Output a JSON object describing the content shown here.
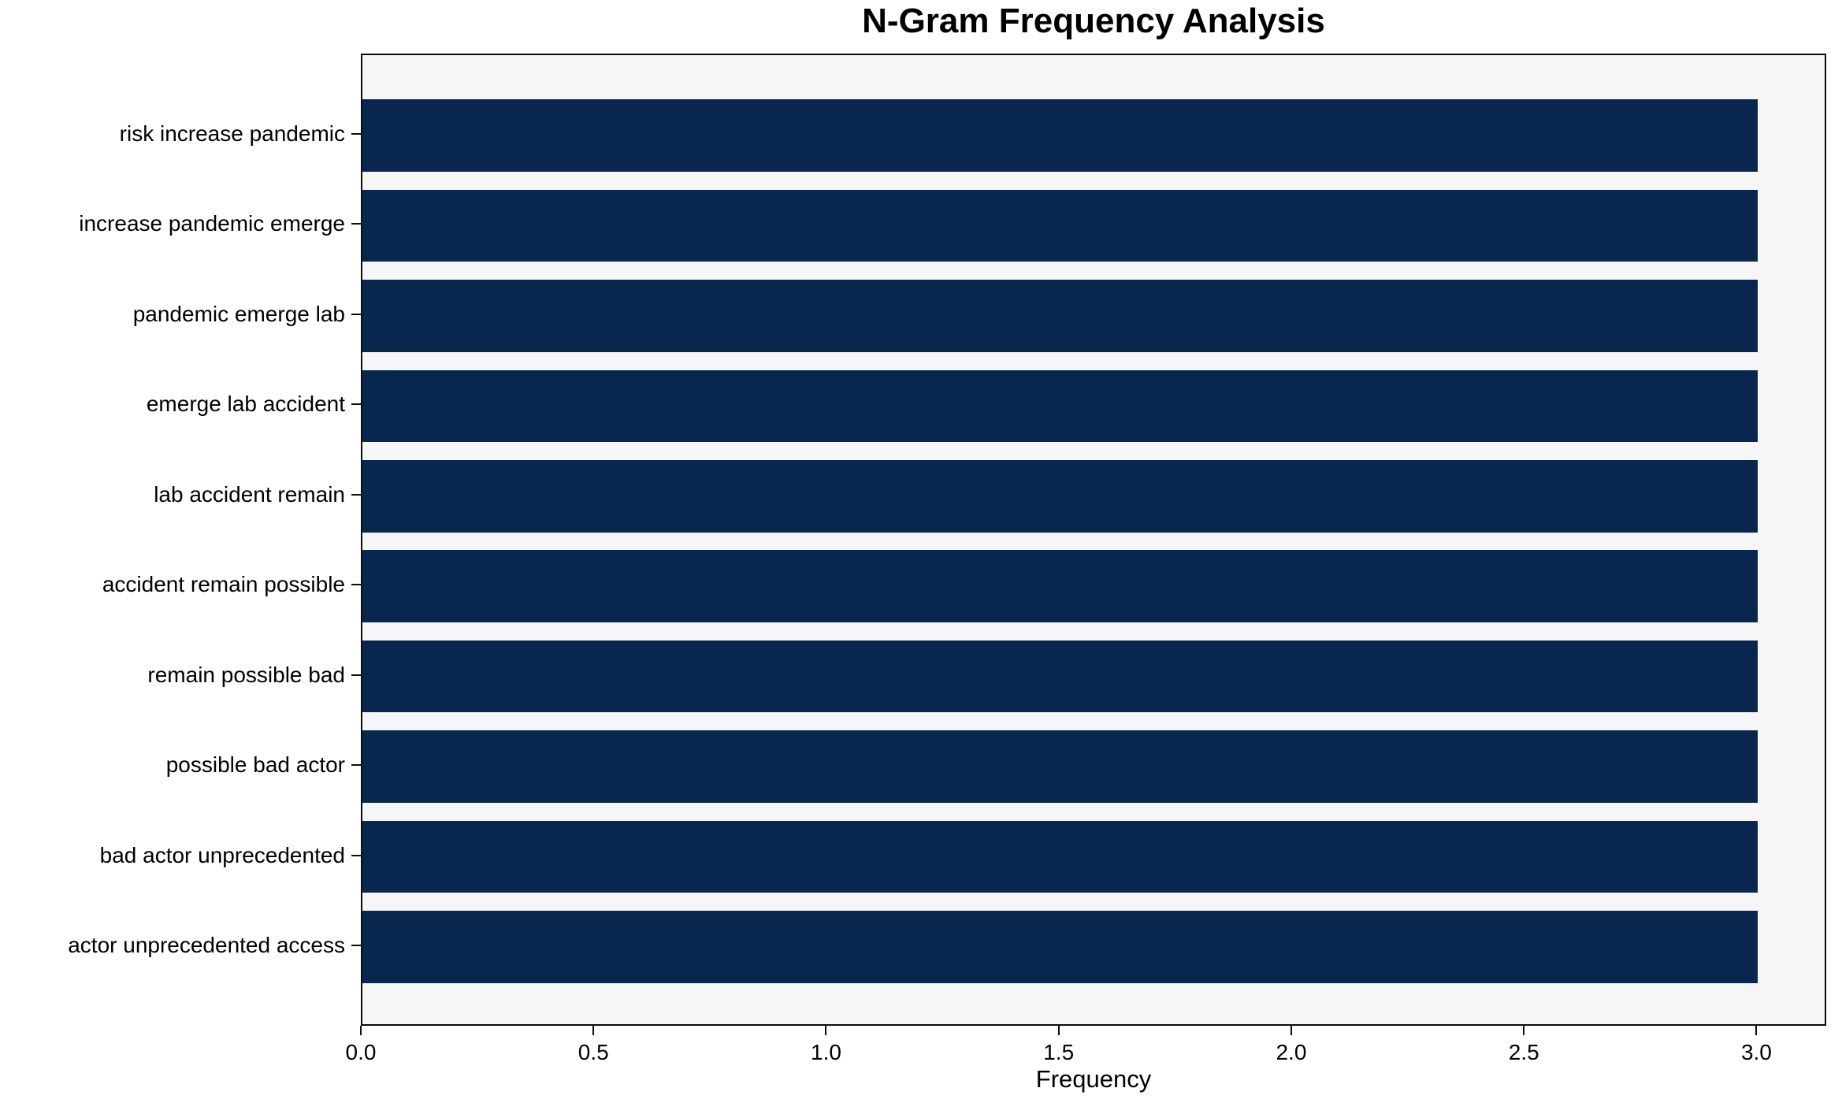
{
  "chart_data": {
    "type": "bar",
    "orientation": "horizontal",
    "title": "N-Gram Frequency Analysis",
    "xlabel": "Frequency",
    "ylabel": "",
    "categories": [
      "risk increase pandemic",
      "increase pandemic emerge",
      "pandemic emerge lab",
      "emerge lab accident",
      "lab accident remain",
      "accident remain possible",
      "remain possible bad",
      "possible bad actor",
      "bad actor unprecedented",
      "actor unprecedented access"
    ],
    "values": [
      3,
      3,
      3,
      3,
      3,
      3,
      3,
      3,
      3,
      3
    ],
    "xlim": [
      0,
      3.15
    ],
    "xticks": [
      0.0,
      0.5,
      1.0,
      1.5,
      2.0,
      2.5,
      3.0
    ],
    "xtick_labels": [
      "0.0",
      "0.5",
      "1.0",
      "1.5",
      "2.0",
      "2.5",
      "3.0"
    ],
    "grid": false,
    "legend": null,
    "colors": {
      "bar": "#08264e",
      "plot_background": "#f6f6f7",
      "figure_background": "#ffffff",
      "spine": "#0d0d0d",
      "text": "#000000"
    }
  }
}
